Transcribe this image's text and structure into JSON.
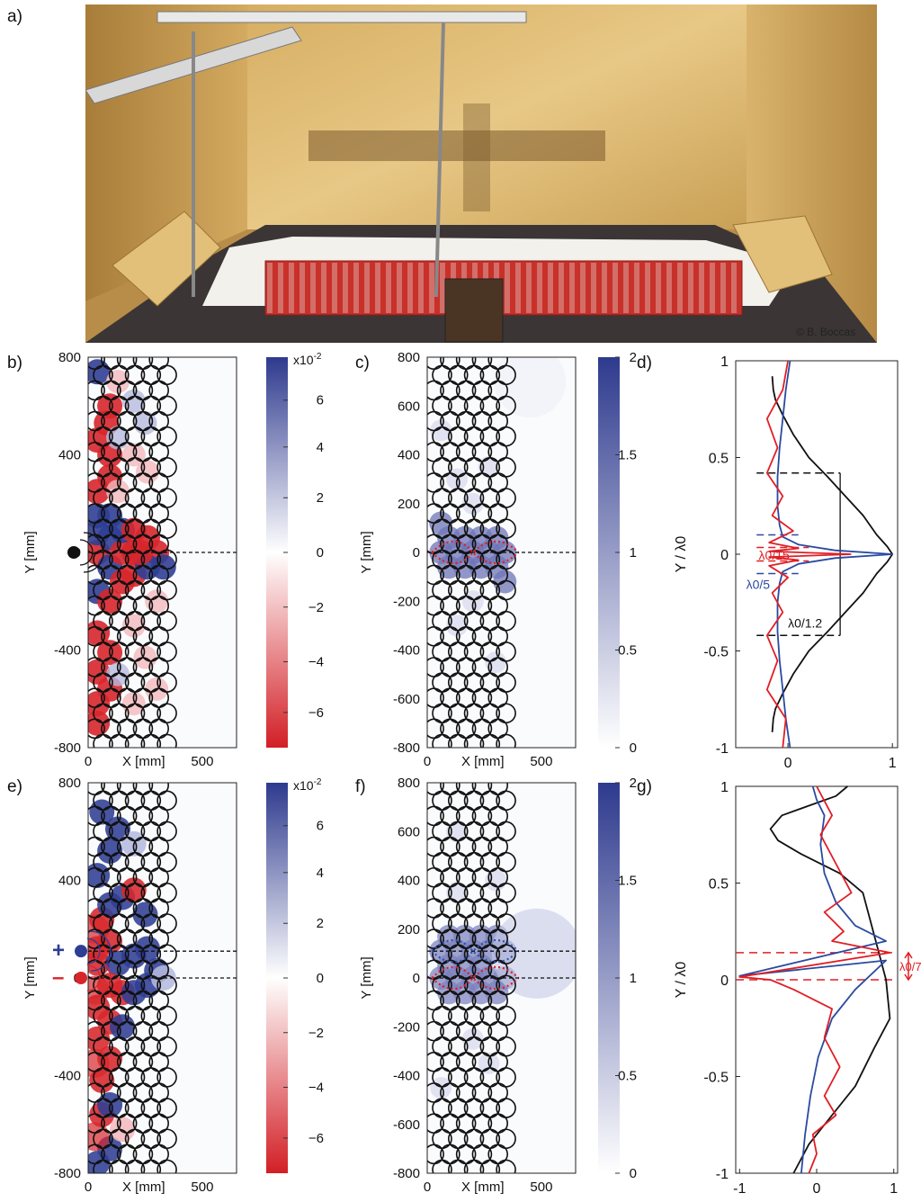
{
  "panels": {
    "a": "a)",
    "b": "b)",
    "c": "c)",
    "d": "d)",
    "e": "e)",
    "f": "f)",
    "g": "g)"
  },
  "photo": {
    "credit": "© B. Boccas"
  },
  "field_maps": {
    "b": {
      "y_label": "Y [mm]",
      "x_label": "X [mm]",
      "y_ticks": [
        "800",
        "400",
        "0",
        "-400",
        "-800"
      ],
      "x_ticks": [
        "0",
        "500"
      ],
      "colorbar_exponent": "x10",
      "colorbar_exponent_power": "-2",
      "colorbar_ticks": [
        "6",
        "4",
        "2",
        "0",
        "−2",
        "−4",
        "−6"
      ]
    },
    "c": {
      "y_label": "Y [mm]",
      "x_label": "X [mm]",
      "y_ticks": [
        "800",
        "600",
        "400",
        "200",
        "0",
        "-200",
        "-400",
        "-600",
        "-800"
      ],
      "x_ticks": [
        "0",
        "500"
      ],
      "colorbar_ticks": [
        "2",
        "1.5",
        "1",
        "0.5",
        "0"
      ]
    },
    "e": {
      "y_label": "Y [mm]",
      "x_label": "X [mm]",
      "y_ticks": [
        "800",
        "400",
        "0",
        "-400",
        "-800"
      ],
      "x_ticks": [
        "0",
        "500"
      ],
      "colorbar_exponent": "x10",
      "colorbar_exponent_power": "-2",
      "colorbar_ticks": [
        "6",
        "4",
        "2",
        "0",
        "−2",
        "−4",
        "−6"
      ],
      "source_plus": "+",
      "source_minus": "–"
    },
    "f": {
      "y_label": "Y [mm]",
      "x_label": "X [mm]",
      "y_ticks": [
        "800",
        "600",
        "400",
        "200",
        "0",
        "-200",
        "-400",
        "-600",
        "-800"
      ],
      "x_ticks": [
        "0",
        "500"
      ],
      "colorbar_ticks": [
        "2",
        "1.5",
        "1",
        "0.5",
        "0"
      ]
    }
  },
  "chart_data": [
    {
      "panel": "d",
      "type": "line",
      "ylabel": "Y / λ0",
      "ylim": [
        -1,
        1
      ],
      "xlim": [
        -0.5,
        1.05
      ],
      "y_ticks": [
        "1",
        "0.5",
        "0",
        "-0.5",
        "-1"
      ],
      "x_ticks": [
        "0",
        "1"
      ],
      "annotations": [
        "λ0/15",
        "λ0/5",
        "λ0/1.2"
      ],
      "series": [
        {
          "color": "#111111",
          "x": [
            -0.15,
            -0.14,
            -0.12,
            -0.05,
            0.05,
            0.2,
            0.38,
            0.55,
            0.72,
            0.85,
            0.95,
            1.0,
            0.95,
            0.85,
            0.72,
            0.55,
            0.38,
            0.2,
            0.05,
            -0.05,
            -0.12,
            -0.14,
            -0.15
          ],
          "y": [
            -0.92,
            -0.85,
            -0.8,
            -0.72,
            -0.62,
            -0.5,
            -0.4,
            -0.3,
            -0.2,
            -0.1,
            -0.04,
            0,
            0.04,
            0.1,
            0.2,
            0.3,
            0.4,
            0.5,
            0.62,
            0.72,
            0.8,
            0.85,
            0.92
          ]
        },
        {
          "color": "#2a4aa0",
          "x": [
            0.02,
            -0.02,
            -0.05,
            -0.08,
            -0.1,
            -0.1,
            -0.08,
            -0.05,
            0.1,
            0.45,
            1.0,
            0.45,
            0.1,
            -0.05,
            -0.08,
            -0.1,
            -0.1,
            -0.08,
            -0.05,
            -0.02,
            0.02
          ],
          "y": [
            -1,
            -0.85,
            -0.7,
            -0.55,
            -0.4,
            -0.25,
            -0.15,
            -0.09,
            -0.05,
            -0.02,
            0,
            0.02,
            0.05,
            0.09,
            0.15,
            0.25,
            0.4,
            0.55,
            0.7,
            0.85,
            1
          ]
        },
        {
          "color": "#e01e25",
          "x": [
            -0.05,
            -0.02,
            -0.2,
            -0.1,
            -0.2,
            -0.05,
            -0.15,
            0.0,
            -0.18,
            0.1,
            -0.18,
            0.6,
            -0.18,
            0.1,
            -0.18,
            0.05,
            -0.15,
            -0.05,
            -0.2,
            -0.1,
            -0.2,
            -0.05,
            0.0
          ],
          "y": [
            -1,
            -0.85,
            -0.7,
            -0.55,
            -0.42,
            -0.3,
            -0.2,
            -0.12,
            -0.06,
            -0.03,
            -0.015,
            0,
            0.015,
            0.03,
            0.06,
            0.12,
            0.2,
            0.3,
            0.42,
            0.55,
            0.7,
            0.85,
            1
          ]
        }
      ]
    },
    {
      "panel": "g",
      "type": "line",
      "ylabel": "Y / λ0",
      "ylim": [
        -1,
        1
      ],
      "xlim": [
        -1.05,
        1.05
      ],
      "y_ticks": [
        "1",
        "0.5",
        "0",
        "-0.5",
        "-1"
      ],
      "x_ticks": [
        "-1",
        "0",
        "1"
      ],
      "annotations": [
        "λ0/7"
      ],
      "series": [
        {
          "color": "#111111",
          "x": [
            -0.3,
            -0.1,
            0.2,
            0.5,
            0.75,
            0.95,
            0.9,
            0.8,
            0.7,
            0.6,
            0.3,
            -0.2,
            -0.5,
            -0.6,
            -0.45,
            -0.1,
            0.25,
            0.4
          ],
          "y": [
            -1,
            -0.85,
            -0.7,
            -0.55,
            -0.35,
            -0.2,
            0.0,
            0.15,
            0.3,
            0.45,
            0.55,
            0.65,
            0.72,
            0.78,
            0.85,
            0.9,
            0.95,
            1
          ]
        },
        {
          "color": "#2a4aa0",
          "x": [
            -0.2,
            -0.15,
            -0.08,
            0.02,
            0.2,
            0.5,
            0.9,
            -1.0,
            0.9,
            0.5,
            0.25,
            0.1,
            0.05,
            0.1,
            0.0,
            -0.05
          ],
          "y": [
            -1,
            -0.8,
            -0.6,
            -0.4,
            -0.2,
            -0.05,
            0.1,
            0.02,
            0.2,
            0.28,
            0.4,
            0.55,
            0.7,
            0.85,
            0.93,
            1
          ]
        },
        {
          "color": "#e01e25",
          "x": [
            -0.1,
            0.0,
            -0.05,
            0.25,
            0.1,
            0.3,
            0.1,
            0.2,
            -0.3,
            -0.6,
            -1.0,
            0.95,
            0.2,
            0.35,
            0.1,
            0.45,
            0.25,
            0.05,
            0.2,
            0.0
          ],
          "y": [
            -1,
            -0.9,
            -0.8,
            -0.7,
            -0.6,
            -0.45,
            -0.3,
            -0.15,
            -0.05,
            0.0,
            0.015,
            0.14,
            0.2,
            0.25,
            0.35,
            0.45,
            0.6,
            0.75,
            0.85,
            1
          ]
        }
      ]
    }
  ]
}
